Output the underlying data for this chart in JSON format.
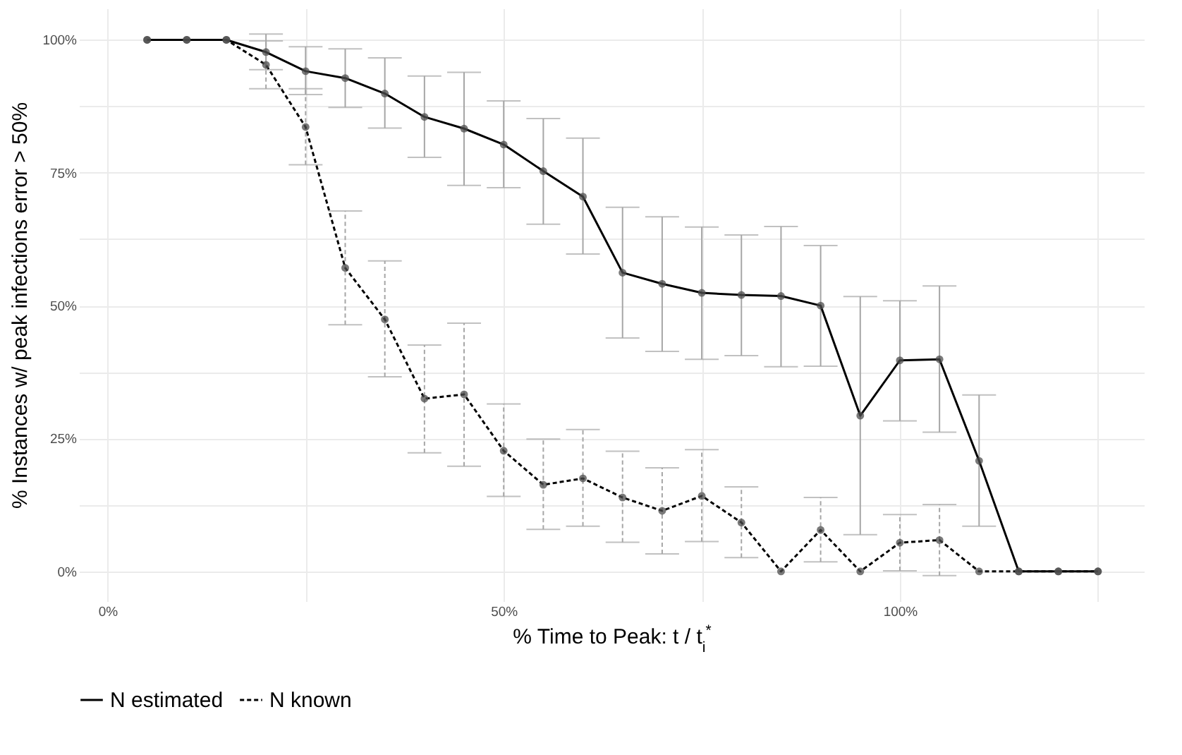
{
  "chart_data": {
    "type": "line",
    "xlabel": "% Time to Peak: t / t$_{i}$$^{*}$",
    "ylabel": "% Instances w/ peak infections error > 50%",
    "x": [
      5,
      10,
      15,
      20,
      25,
      30,
      35,
      40,
      45,
      50,
      55,
      60,
      65,
      70,
      75,
      80,
      85,
      90,
      95,
      100,
      105,
      110,
      115,
      120,
      125
    ],
    "series": [
      {
        "name": "N estimated",
        "color": "#000000",
        "line_style": "solid",
        "values": [
          100,
          100,
          100,
          97.7,
          94.1,
          92.8,
          89.9,
          85.5,
          83.3,
          80.3,
          75.3,
          70.5,
          56.2,
          54.1,
          52.4,
          52.0,
          51.8,
          50.0,
          29.3,
          39.7,
          39.9,
          20.8,
          0,
          0,
          0
        ],
        "errors": [
          null,
          null,
          null,
          [
            94.4,
            101.1
          ],
          [
            89.7,
            98.7
          ],
          [
            87.3,
            98.3
          ],
          [
            83.4,
            96.6
          ],
          [
            77.9,
            93.2
          ],
          [
            72.6,
            93.9
          ],
          [
            72.2,
            88.5
          ],
          [
            65.3,
            85.2
          ],
          [
            59.7,
            81.5
          ],
          [
            43.9,
            68.5
          ],
          [
            41.4,
            66.7
          ],
          [
            39.9,
            64.8
          ],
          [
            40.6,
            63.3
          ],
          [
            38.5,
            64.9
          ],
          [
            38.6,
            61.3
          ],
          [
            6.9,
            51.7
          ],
          [
            28.3,
            50.9
          ],
          [
            26.2,
            53.7
          ],
          [
            8.5,
            33.2
          ],
          null,
          null,
          null
        ]
      },
      {
        "name": "N known",
        "color": "#000000",
        "line_style": "dashed",
        "values": [
          100,
          100,
          100,
          95.3,
          83.6,
          57.1,
          47.4,
          32.5,
          33.3,
          22.7,
          16.3,
          17.5,
          13.9,
          11.4,
          14.2,
          9.2,
          0,
          7.8,
          0,
          5.4,
          5.9,
          0,
          0,
          0,
          0
        ],
        "errors": [
          null,
          null,
          null,
          [
            90.8,
            99.8
          ],
          [
            76.5,
            90.8
          ],
          [
            46.4,
            67.8
          ],
          [
            36.6,
            58.4
          ],
          [
            22.3,
            42.6
          ],
          [
            19.8,
            46.7
          ],
          [
            14.1,
            31.5
          ],
          [
            7.9,
            24.9
          ],
          [
            8.5,
            26.7
          ],
          [
            5.5,
            22.6
          ],
          [
            3.3,
            19.5
          ],
          [
            5.6,
            22.9
          ],
          [
            2.6,
            15.9
          ],
          null,
          [
            1.8,
            13.9
          ],
          null,
          [
            0.1,
            10.7
          ],
          [
            -0.8,
            12.6
          ],
          null,
          null,
          null,
          null
        ]
      }
    ],
    "xlim": [
      -3.6,
      130.8
    ],
    "xticks": [
      {
        "value": 0,
        "label": "0%"
      },
      {
        "value": 25,
        "label": null
      },
      {
        "value": 50,
        "label": "50%"
      },
      {
        "value": 75,
        "label": null
      },
      {
        "value": 100,
        "label": "100%"
      },
      {
        "value": 125,
        "label": null
      }
    ],
    "ylim": [
      -5.6,
      105.9
    ],
    "yticks": [
      {
        "value": 0,
        "label": "0%"
      },
      {
        "value": 12.5,
        "label": null
      },
      {
        "value": 25,
        "label": "25%"
      },
      {
        "value": 37.5,
        "label": null
      },
      {
        "value": 50,
        "label": "50%"
      },
      {
        "value": 62.5,
        "label": null
      },
      {
        "value": 75,
        "label": "75%"
      },
      {
        "value": 87.5,
        "label": null
      },
      {
        "value": 100,
        "label": "100%"
      }
    ],
    "grid": true,
    "legend": "bottom",
    "marker": "circle"
  }
}
